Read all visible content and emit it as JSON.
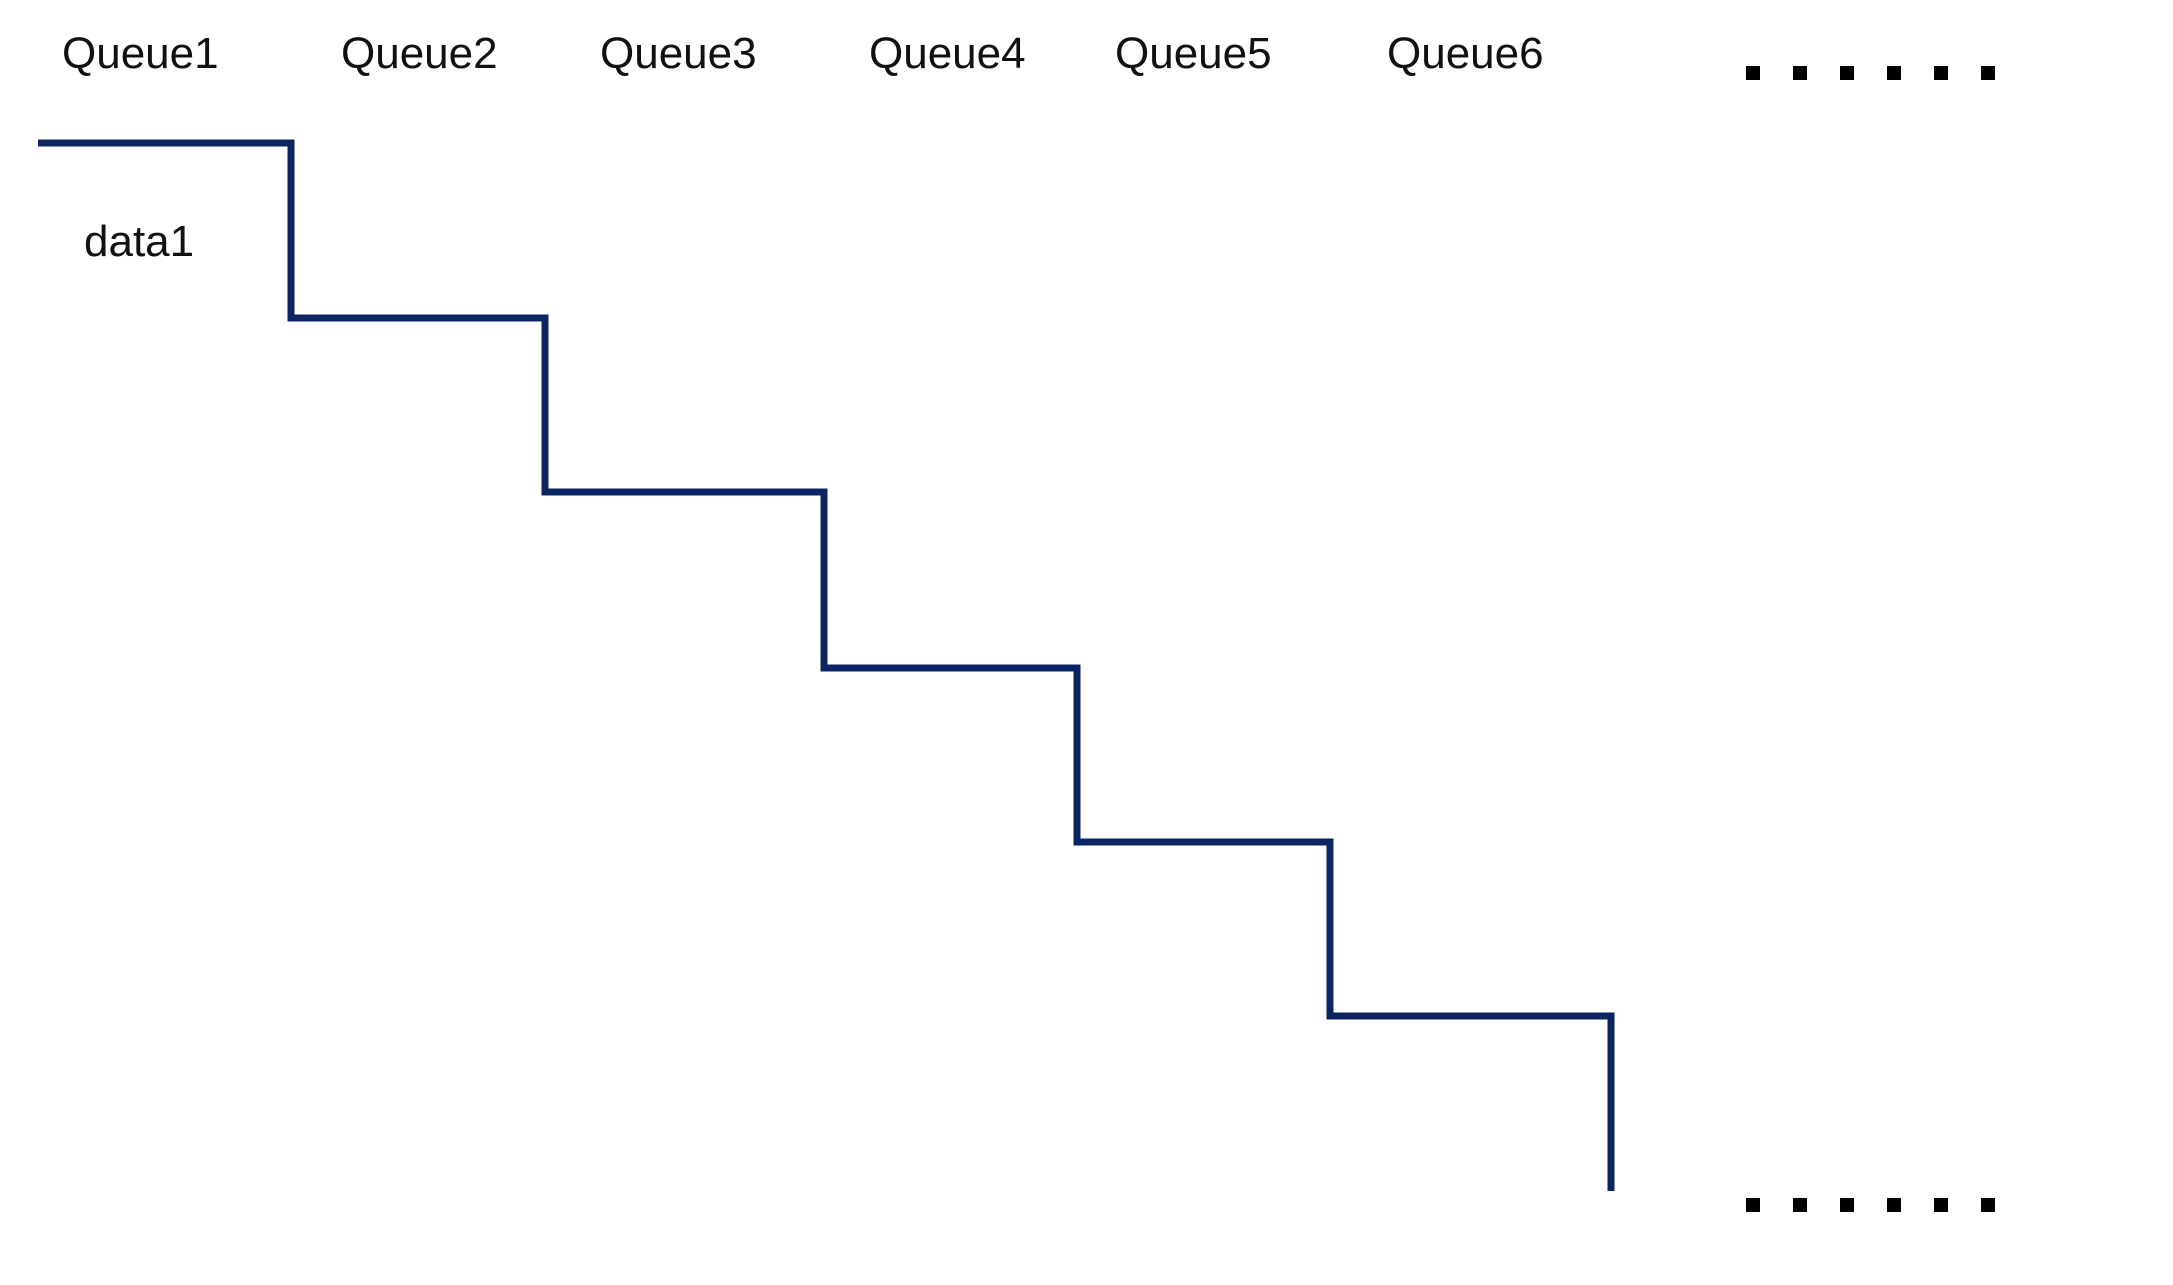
{
  "queues": [
    {
      "label": "Queue1"
    },
    {
      "label": "Queue2"
    },
    {
      "label": "Queue3"
    },
    {
      "label": "Queue4"
    },
    {
      "label": "Queue5"
    },
    {
      "label": "Queue6"
    }
  ],
  "data_label": "data1",
  "ellipsis": {
    "dot_count": 6
  },
  "colors": {
    "line": "#0b2462",
    "text": "#111111",
    "dots": "#000000"
  }
}
